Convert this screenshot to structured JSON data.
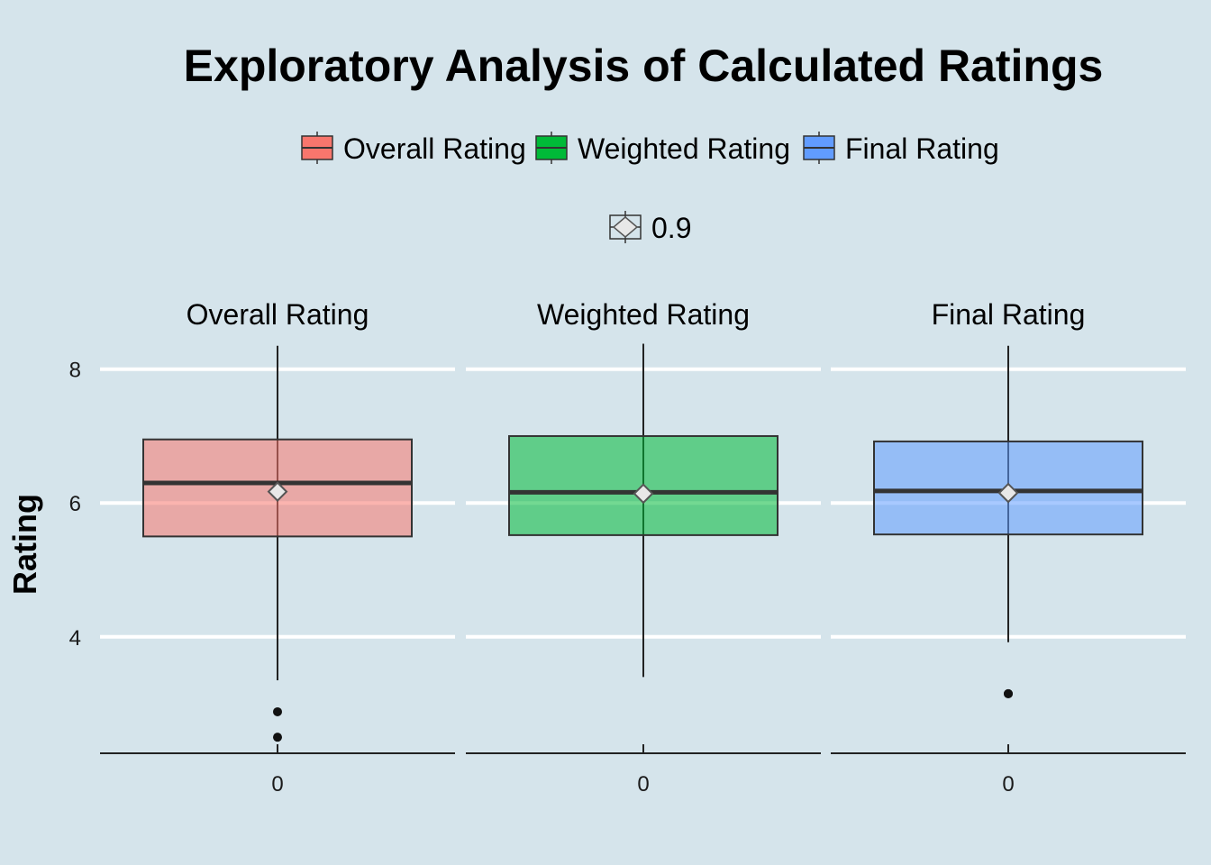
{
  "chart_data": {
    "type": "boxplot",
    "title": "Exploratory Analysis of Calculated Ratings",
    "ylabel": "Rating",
    "xlabel": "",
    "ylim": [
      2.26,
      8.4
    ],
    "yticks": [
      4,
      6,
      8
    ],
    "grid": true,
    "legend_position": "top",
    "legend": {
      "fill_entries": [
        {
          "label": "Overall Rating",
          "color": "#f8766d"
        },
        {
          "label": "Weighted Rating",
          "color": "#00ba38"
        },
        {
          "label": "Final Rating",
          "color": "#619cff"
        }
      ],
      "alpha_entry": {
        "label": "0.9"
      }
    },
    "facets": [
      {
        "label": "Overall Rating",
        "x_tick": "0",
        "color": "#f8766d",
        "whisker_low": 3.35,
        "q1": 5.5,
        "median": 6.3,
        "q3": 6.95,
        "whisker_high": 8.35,
        "mean": 6.17,
        "outliers": [
          2.88,
          2.5
        ]
      },
      {
        "label": "Weighted Rating",
        "x_tick": "0",
        "color": "#00ba38",
        "whisker_low": 3.4,
        "q1": 5.52,
        "median": 6.16,
        "q3": 7.0,
        "whisker_high": 8.38,
        "mean": 6.14,
        "outliers": []
      },
      {
        "label": "Final Rating",
        "x_tick": "0",
        "color": "#619cff",
        "whisker_low": 3.92,
        "q1": 5.53,
        "median": 6.18,
        "q3": 6.92,
        "whisker_high": 8.35,
        "mean": 6.15,
        "outliers": [
          3.15,
          3.15
        ]
      }
    ]
  }
}
